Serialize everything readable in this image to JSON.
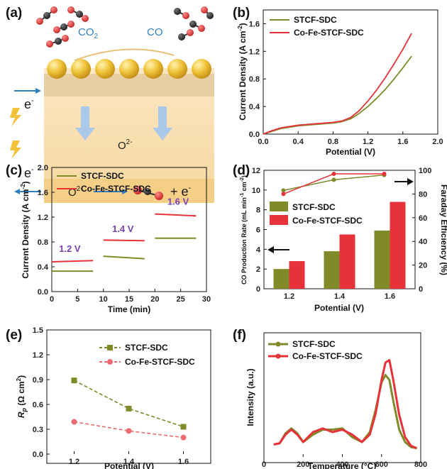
{
  "colors": {
    "green": "#808a28",
    "red": "#e8323a",
    "red_light": "#ef6a6f",
    "purple": "#7a3fb3",
    "blue": "#2f7fc1"
  },
  "panel_labels": [
    "(a)",
    "(b)",
    "(c)",
    "(d)",
    "(e)",
    "(f)"
  ],
  "schematic": {
    "co2": "CO2",
    "co": "CO",
    "o2_bulk": "O2-",
    "o2_interface": "O2-",
    "e_left_top": "e-",
    "e_left_bottom": "e-",
    "e_product": "+ e-",
    "icons": [
      "lightning-icon",
      "molecule-icon",
      "particle-icon",
      "arrow-icon"
    ]
  },
  "chart_data": [
    {
      "panel": "(b)",
      "type": "line",
      "xlabel": "Potential (V)",
      "ylabel": "Current Density (A cm-2)",
      "xlim": [
        0,
        2.0
      ],
      "ylim": [
        0,
        1.8
      ],
      "xticks": [
        "0.0",
        "0.4",
        "0.8",
        "1.2",
        "1.6",
        "2.0"
      ],
      "yticks": [
        "0.0",
        "0.4",
        "0.8",
        "1.2",
        "1.6"
      ],
      "legend": "top-left",
      "series": [
        {
          "name": "STCF-SDC",
          "color": "#808a28",
          "x": [
            0,
            0.1,
            0.2,
            0.4,
            0.6,
            0.8,
            0.9,
            1.0,
            1.1,
            1.2,
            1.3,
            1.4,
            1.5,
            1.6,
            1.7
          ],
          "y": [
            0,
            0.04,
            0.08,
            0.12,
            0.14,
            0.16,
            0.18,
            0.22,
            0.3,
            0.4,
            0.52,
            0.65,
            0.8,
            0.96,
            1.13
          ]
        },
        {
          "name": "Co-Fe-STCF-SDC",
          "color": "#e8323a",
          "x": [
            0,
            0.1,
            0.2,
            0.4,
            0.6,
            0.8,
            0.9,
            1.0,
            1.1,
            1.2,
            1.3,
            1.4,
            1.5,
            1.6,
            1.7
          ],
          "y": [
            0,
            0.05,
            0.09,
            0.13,
            0.15,
            0.17,
            0.19,
            0.24,
            0.34,
            0.48,
            0.64,
            0.82,
            1.02,
            1.23,
            1.46
          ]
        }
      ]
    },
    {
      "panel": "(c)",
      "type": "line",
      "xlabel": "Time (min)",
      "ylabel": "Current Density (A cm-2)",
      "xlim": [
        0,
        30
      ],
      "ylim": [
        0,
        2.0
      ],
      "xticks": [
        "0",
        "5",
        "10",
        "15",
        "20",
        "25",
        "30"
      ],
      "yticks": [
        "0.0",
        "0.4",
        "0.8",
        "1.2",
        "1.6",
        "2.0"
      ],
      "legend": "top-left",
      "annotations": [
        {
          "text": "1.2 V",
          "x": 3.5,
          "y": 0.64
        },
        {
          "text": "1.4 V",
          "x": 13.8,
          "y": 0.96
        },
        {
          "text": "1.6 V",
          "x": 24.5,
          "y": 1.4
        }
      ],
      "series": [
        {
          "name": "STCF-SDC",
          "color": "#808a28",
          "segments": [
            {
              "x": [
                0,
                8
              ],
              "y": [
                0.33,
                0.33
              ]
            },
            {
              "x": [
                10,
                18
              ],
              "y": [
                0.57,
                0.53
              ]
            },
            {
              "x": [
                20,
                28
              ],
              "y": [
                0.86,
                0.86
              ]
            }
          ]
        },
        {
          "name": "Co-Fe-STCF-SDC",
          "color": "#e8323a",
          "segments": [
            {
              "x": [
                0,
                8
              ],
              "y": [
                0.48,
                0.5
              ]
            },
            {
              "x": [
                10,
                18
              ],
              "y": [
                0.83,
                0.82
              ]
            },
            {
              "x": [
                20,
                28
              ],
              "y": [
                1.25,
                1.22
              ]
            }
          ]
        }
      ]
    },
    {
      "panel": "(d)",
      "type": "bar",
      "xlabel": "Potential (V)",
      "ylabel": "CO Production Rate (mL min-1 cm-2)",
      "ylabel_right": "Faraday Efficiency (%)",
      "categories": [
        "1.2",
        "1.4",
        "1.6"
      ],
      "ylim": [
        0,
        12
      ],
      "ylim_right": [
        0,
        100
      ],
      "yticks": [
        "0",
        "2",
        "4",
        "6",
        "8",
        "10",
        "12"
      ],
      "yticks_right": [
        "0",
        "20",
        "40",
        "60",
        "80",
        "100"
      ],
      "legend": "center-left",
      "series": [
        {
          "name": "STCF-SDC",
          "color": "#808a28",
          "values": [
            2.0,
            3.8,
            5.9
          ],
          "faraday": [
            83,
            92,
            96
          ]
        },
        {
          "name": "Co-Fe-STCF-SDC",
          "color": "#e8323a",
          "values": [
            2.8,
            5.5,
            8.8
          ],
          "faraday": [
            80,
            97,
            97
          ]
        }
      ]
    },
    {
      "panel": "(e)",
      "type": "line",
      "xlabel": "Potential (V)",
      "ylabel": "Rp (Ω cm2)",
      "xlim": [
        1.1,
        1.7
      ],
      "ylim": [
        0,
        1.5
      ],
      "xticks": [
        "1.2",
        "1.4",
        "1.6"
      ],
      "yticks": [
        "0.0",
        "0.3",
        "0.6",
        "0.9",
        "1.2",
        "1.5"
      ],
      "legend": "top-right",
      "series": [
        {
          "name": "STCF-SDC",
          "color": "#808a28",
          "marker": "square",
          "x": [
            1.2,
            1.4,
            1.6
          ],
          "y": [
            0.89,
            0.55,
            0.33
          ]
        },
        {
          "name": "Co-Fe-STCF-SDC",
          "color": "#ef6a6f",
          "marker": "circle",
          "x": [
            1.2,
            1.4,
            1.6
          ],
          "y": [
            0.39,
            0.28,
            0.2
          ]
        }
      ]
    },
    {
      "panel": "(f)",
      "type": "line",
      "xlabel": "Temperature (°C)",
      "ylabel": "Intensity (a.u.)",
      "xlim": [
        0,
        800
      ],
      "ylim": [
        0,
        1
      ],
      "xticks": [
        "0",
        "200",
        "400",
        "600",
        "800"
      ],
      "legend": "top-left",
      "series": [
        {
          "name": "STCF-SDC",
          "color": "#808a28",
          "x": [
            50,
            80,
            110,
            140,
            170,
            200,
            250,
            300,
            350,
            400,
            450,
            500,
            540,
            570,
            600,
            620,
            640,
            660,
            690,
            720,
            750,
            780
          ],
          "y": [
            0.1,
            0.11,
            0.19,
            0.23,
            0.19,
            0.12,
            0.18,
            0.22,
            0.22,
            0.23,
            0.16,
            0.12,
            0.2,
            0.38,
            0.6,
            0.66,
            0.62,
            0.45,
            0.22,
            0.12,
            0.08,
            0.07
          ]
        },
        {
          "name": "Co-Fe-STCF-SDC",
          "color": "#e8323a",
          "x": [
            50,
            80,
            110,
            140,
            170,
            200,
            250,
            300,
            350,
            400,
            450,
            500,
            540,
            570,
            600,
            620,
            640,
            660,
            690,
            720,
            750,
            780
          ],
          "y": [
            0.1,
            0.11,
            0.18,
            0.22,
            0.18,
            0.12,
            0.2,
            0.23,
            0.2,
            0.22,
            0.18,
            0.12,
            0.18,
            0.35,
            0.62,
            0.76,
            0.78,
            0.62,
            0.34,
            0.16,
            0.09,
            0.07
          ]
        }
      ]
    }
  ]
}
